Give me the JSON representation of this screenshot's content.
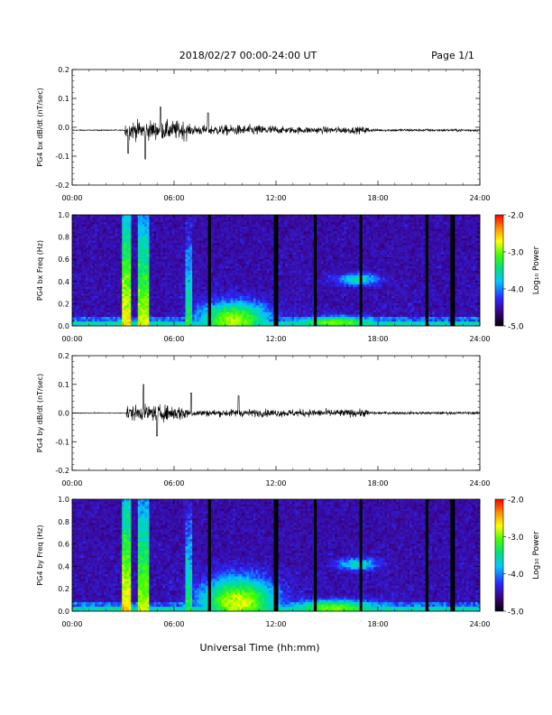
{
  "header": {
    "date_range": "2018/02/27  00:00-24:00 UT",
    "page": "Page 1/1"
  },
  "xaxis": {
    "label": "Universal Time (hh:mm)",
    "ticks": [
      "00:00",
      "06:00",
      "12:00",
      "18:00",
      "24:00"
    ],
    "range_hours": [
      0,
      24
    ]
  },
  "colorbar": {
    "label": "Log₁₀ Power",
    "ticks": [
      "-2.0",
      "-3.0",
      "-4.0",
      "-5.0"
    ],
    "range": [
      -5.0,
      -2.0
    ],
    "colors": [
      "#000000",
      "#3b0080",
      "#2a2aff",
      "#00c8ff",
      "#00e080",
      "#40ff00",
      "#ffff00",
      "#ff9000",
      "#ff0000"
    ]
  },
  "chart_data": [
    {
      "type": "line",
      "ylabel": "PG4 bx dB/dt (nT/sec)",
      "ylim": [
        -0.2,
        0.2
      ],
      "yticks": [
        "0.2",
        "0.1",
        "0.0",
        "-0.1",
        "-0.2"
      ],
      "baseline": -0.01,
      "activity": [
        {
          "start_h": 3.1,
          "end_h": 6.8,
          "amplitude": 0.055
        },
        {
          "start_h": 6.8,
          "end_h": 12.0,
          "amplitude": 0.03
        },
        {
          "start_h": 12.0,
          "end_h": 17.5,
          "amplitude": 0.02
        },
        {
          "start_h": 17.5,
          "end_h": 24.0,
          "amplitude": 0.008
        }
      ],
      "peaks": [
        {
          "t_h": 3.3,
          "value": -0.09
        },
        {
          "t_h": 4.3,
          "value": -0.11
        },
        {
          "t_h": 5.2,
          "value": 0.07
        },
        {
          "t_h": 8.0,
          "value": 0.05
        }
      ]
    },
    {
      "type": "heatmap",
      "ylabel": "PG4 bx Freq (Hz)",
      "ylim": [
        0.0,
        1.0
      ],
      "yticks": [
        "1.0",
        "0.8",
        "0.6",
        "0.4",
        "0.2",
        "0.0"
      ],
      "gaps_h": [
        8.1,
        12.0,
        14.3,
        17.0,
        20.9,
        22.4
      ],
      "spikes": [
        {
          "t_h": 3.2,
          "level": -2.6,
          "width_h": 0.25
        },
        {
          "t_h": 4.2,
          "level": -2.8,
          "width_h": 0.35
        },
        {
          "t_h": 6.9,
          "level": -3.3,
          "width_h": 0.2
        }
      ],
      "blobs": [
        {
          "t_h": 9.5,
          "f": 0.05,
          "level": -2.9,
          "sigma_t": 1.5,
          "sigma_f": 0.12
        },
        {
          "t_h": 16.8,
          "f": 0.42,
          "level": -3.6,
          "sigma_t": 0.9,
          "sigma_f": 0.04
        },
        {
          "t_h": 15.5,
          "f": 0.03,
          "level": -3.0,
          "sigma_t": 1.8,
          "sigma_f": 0.04
        }
      ]
    },
    {
      "type": "line",
      "ylabel": "PG4 by dB/dt (nT/sec)",
      "ylim": [
        -0.2,
        0.2
      ],
      "yticks": [
        "0.2",
        "0.1",
        "0.0",
        "-0.1",
        "-0.2"
      ],
      "baseline": 0.0,
      "activity": [
        {
          "start_h": 3.2,
          "end_h": 6.8,
          "amplitude": 0.045
        },
        {
          "start_h": 6.8,
          "end_h": 9.0,
          "amplitude": 0.02
        },
        {
          "start_h": 9.0,
          "end_h": 17.5,
          "amplitude": 0.022
        },
        {
          "start_h": 17.5,
          "end_h": 24.0,
          "amplitude": 0.008
        }
      ],
      "peaks": [
        {
          "t_h": 4.2,
          "value": 0.1
        },
        {
          "t_h": 5.0,
          "value": -0.08
        },
        {
          "t_h": 7.0,
          "value": 0.07
        },
        {
          "t_h": 9.8,
          "value": 0.06
        }
      ]
    },
    {
      "type": "heatmap",
      "ylabel": "PG4 by Freq (Hz)",
      "ylim": [
        0.0,
        1.0
      ],
      "yticks": [
        "1.0",
        "0.8",
        "0.6",
        "0.4",
        "0.2",
        "0.0"
      ],
      "gaps_h": [
        8.1,
        12.0,
        14.3,
        17.0,
        20.9,
        22.4
      ],
      "spikes": [
        {
          "t_h": 3.2,
          "level": -2.6,
          "width_h": 0.25
        },
        {
          "t_h": 4.2,
          "level": -2.8,
          "width_h": 0.35
        },
        {
          "t_h": 6.9,
          "level": -3.3,
          "width_h": 0.2
        }
      ],
      "blobs": [
        {
          "t_h": 9.8,
          "f": 0.08,
          "level": -2.8,
          "sigma_t": 1.6,
          "sigma_f": 0.16
        },
        {
          "t_h": 16.8,
          "f": 0.42,
          "level": -3.6,
          "sigma_t": 0.9,
          "sigma_f": 0.04
        },
        {
          "t_h": 15.5,
          "f": 0.03,
          "level": -3.0,
          "sigma_t": 2.0,
          "sigma_f": 0.05
        }
      ]
    }
  ]
}
